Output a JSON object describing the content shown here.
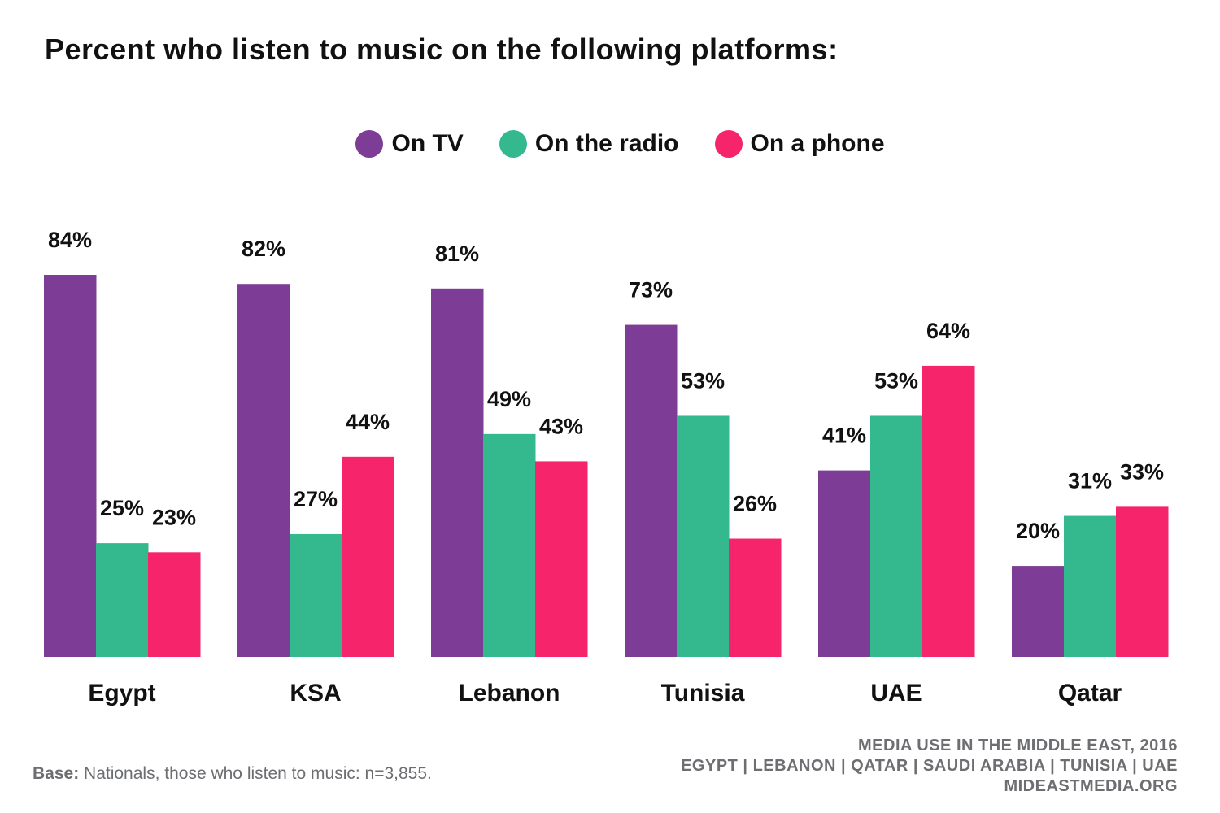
{
  "chart_data": {
    "type": "bar",
    "title": "Percent who listen to music on the following platforms:",
    "categories": [
      "Egypt",
      "KSA",
      "Lebanon",
      "Tunisia",
      "UAE",
      "Qatar"
    ],
    "series": [
      {
        "name": "On TV",
        "color": "#7d3c95",
        "values": [
          84,
          82,
          81,
          73,
          41,
          20
        ],
        "labels": [
          "84%",
          "82%",
          "81%",
          "73%",
          "41%",
          "20%"
        ]
      },
      {
        "name": "On the radio",
        "color": "#33b98d",
        "values": [
          25,
          27,
          49,
          53,
          53,
          31
        ],
        "labels": [
          "25%",
          "27%",
          "49%",
          "53%",
          "53%",
          "31%"
        ]
      },
      {
        "name": "On a phone",
        "color": "#f5246b",
        "values": [
          23,
          44,
          43,
          26,
          64,
          33
        ],
        "labels": [
          "23%",
          "44%",
          "43%",
          "26%",
          "64%",
          "33%"
        ]
      }
    ],
    "xlabel": "",
    "ylabel": "",
    "ylim": [
      0,
      100
    ],
    "legend_position": "top-center",
    "grid": false
  },
  "footer": {
    "base_label": "Base:",
    "base_text": " Nationals, those who listen to music: n=3,855.",
    "source_line1": "MEDIA USE IN THE MIDDLE EAST, 2016",
    "source_line2": "EGYPT | LEBANON | QATAR | SAUDI ARABIA | TUNISIA | UAE",
    "source_line3": "MIDEASTMEDIA.ORG"
  }
}
